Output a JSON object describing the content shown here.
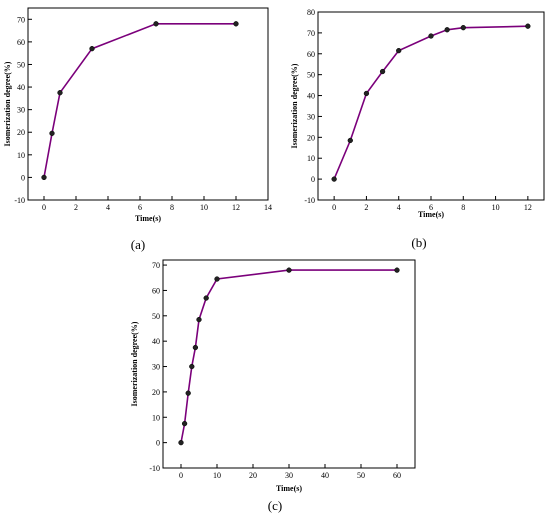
{
  "chart_data": [
    {
      "type": "line",
      "panel_label": "(a)",
      "xlabel": "Time(s)",
      "ylabel": "Isomerization degree(%)",
      "xlim": [
        -1,
        14
      ],
      "ylim": [
        -10,
        75
      ],
      "xticks": [
        0,
        2,
        4,
        6,
        8,
        10,
        12,
        14
      ],
      "yticks": [
        -10,
        0,
        10,
        20,
        30,
        40,
        50,
        60,
        70
      ],
      "grid": false,
      "line_color": "#7b007b",
      "marker_color": "#222222",
      "series": [
        {
          "x": [
            0,
            0.5,
            1,
            3,
            7,
            12
          ],
          "y": [
            0,
            19.5,
            37.5,
            57,
            68,
            68
          ]
        }
      ]
    },
    {
      "type": "line",
      "panel_label": "(b)",
      "xlabel": "Time(s)",
      "ylabel": "Isomerization degree(%)",
      "xlim": [
        -1,
        13
      ],
      "ylim": [
        -10,
        80
      ],
      "xticks": [
        0,
        2,
        4,
        6,
        8,
        10,
        12
      ],
      "yticks": [
        -10,
        0,
        10,
        20,
        30,
        40,
        50,
        60,
        70,
        80
      ],
      "grid": false,
      "line_color": "#7b007b",
      "marker_color": "#222222",
      "series": [
        {
          "x": [
            0,
            1,
            2,
            3,
            4,
            6,
            7,
            8,
            12
          ],
          "y": [
            0,
            18.5,
            41,
            51.5,
            61.5,
            68.5,
            71.5,
            72.5,
            73.2
          ]
        }
      ]
    },
    {
      "type": "line",
      "panel_label": "(c)",
      "xlabel": "Time(s)",
      "ylabel": "Isomerization degree(%)",
      "xlim": [
        -5,
        65
      ],
      "ylim": [
        -10,
        72
      ],
      "xticks": [
        0,
        10,
        20,
        30,
        40,
        50,
        60
      ],
      "yticks": [
        -10,
        0,
        10,
        20,
        30,
        40,
        50,
        60,
        70
      ],
      "grid": false,
      "line_color": "#7b007b",
      "marker_color": "#222222",
      "series": [
        {
          "x": [
            0,
            1,
            2,
            3,
            4,
            5,
            7,
            10,
            30,
            60
          ],
          "y": [
            0,
            7.5,
            19.5,
            30,
            37.5,
            48.5,
            57,
            64.5,
            68,
            68
          ]
        }
      ]
    }
  ]
}
